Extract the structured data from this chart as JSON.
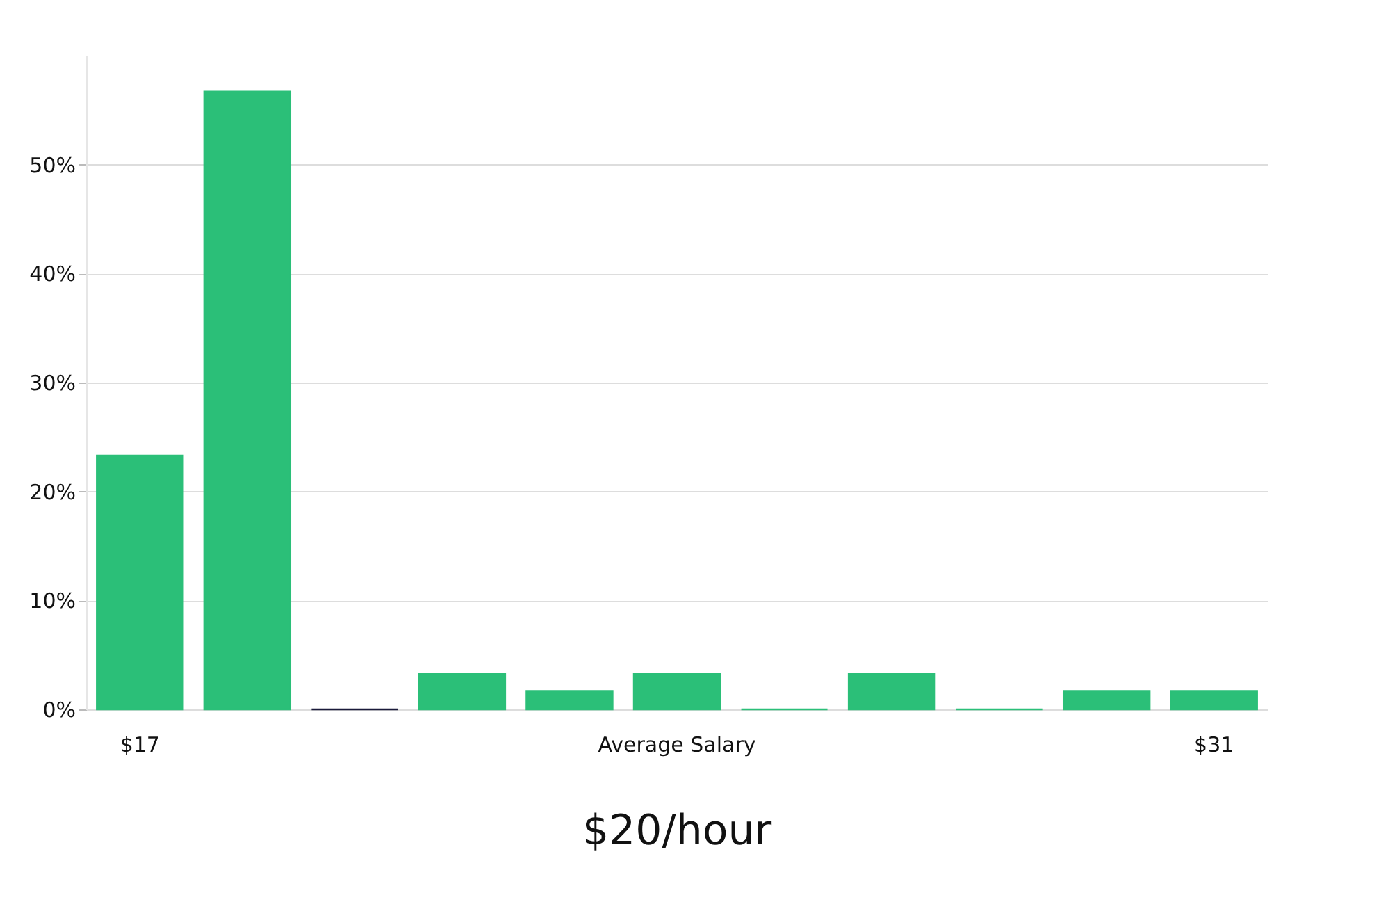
{
  "chart_data": {
    "type": "bar",
    "title": "$20/hour",
    "categories": [
      "$17",
      null,
      null,
      null,
      null,
      "Average Salary",
      null,
      null,
      null,
      null,
      "$31"
    ],
    "values": [
      23.3,
      56.7,
      0,
      3.3,
      1.7,
      3.3,
      0,
      3.3,
      0,
      1.7,
      1.7
    ],
    "colors": [
      "#2bbf78",
      "#2bbf78",
      "#1a1a3a",
      "#2bbf78",
      "#2bbf78",
      "#2bbf78",
      "#2bbf78",
      "#2bbf78",
      "#2bbf78",
      "#2bbf78",
      "#2bbf78"
    ],
    "ylim": [
      0,
      60
    ],
    "yticks": [
      {
        "value": 0,
        "label": "0%"
      },
      {
        "value": 10,
        "label": "10%"
      },
      {
        "value": 20,
        "label": "20%"
      },
      {
        "value": 30,
        "label": "30%"
      },
      {
        "value": 40,
        "label": "40%"
      },
      {
        "value": 50,
        "label": "50%"
      }
    ],
    "grid": "y"
  }
}
